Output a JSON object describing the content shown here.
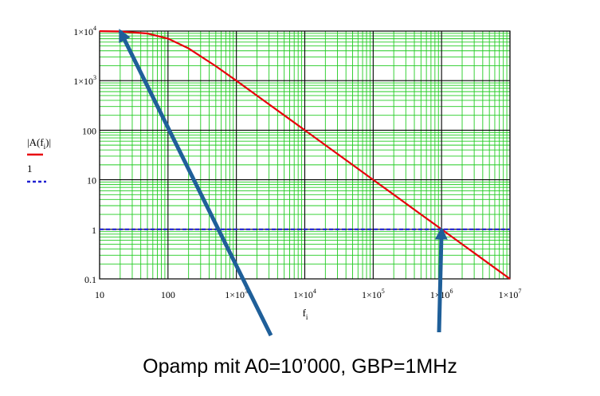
{
  "chart_data": {
    "type": "line",
    "xscale": "log",
    "yscale": "log",
    "xlim": [
      10,
      10000000
    ],
    "ylim": [
      0.1,
      10000
    ],
    "grid": true,
    "xlabel": "f",
    "xlabel_sub": "i",
    "x_ticks": [
      {
        "value": 10,
        "base": "10",
        "exp": ""
      },
      {
        "value": 100,
        "base": "100",
        "exp": ""
      },
      {
        "value": 1000,
        "base": "1×10",
        "exp": "3"
      },
      {
        "value": 10000,
        "base": "1×10",
        "exp": "4"
      },
      {
        "value": 100000,
        "base": "1×10",
        "exp": "5"
      },
      {
        "value": 1000000,
        "base": "1×10",
        "exp": "6"
      },
      {
        "value": 10000000,
        "base": "1×10",
        "exp": "7"
      }
    ],
    "y_ticks": [
      {
        "value": 10000,
        "base": "1×10",
        "exp": "4"
      },
      {
        "value": 1000,
        "base": "1×10",
        "exp": "3"
      },
      {
        "value": 100,
        "base": "100",
        "exp": ""
      },
      {
        "value": 10,
        "base": "10",
        "exp": ""
      },
      {
        "value": 1,
        "base": "1",
        "exp": ""
      },
      {
        "value": 0.1,
        "base": "0.1",
        "exp": ""
      }
    ],
    "series": [
      {
        "name": "|A(f_i)|",
        "legend_main": "|A(f",
        "legend_sub": "i",
        "legend_tail": ")|",
        "color": "#e8000b",
        "style": "solid",
        "x": [
          10,
          20,
          50,
          100,
          200,
          500,
          1000,
          2000,
          5000,
          10000,
          20000,
          50000,
          100000,
          200000,
          500000,
          1000000,
          2000000,
          5000000,
          10000000
        ],
        "y": [
          9950,
          9810,
          8940,
          7070,
          4470,
          1960,
          995,
          499,
          200,
          100,
          50,
          20,
          10,
          5,
          2,
          1,
          0.5,
          0.2,
          0.1
        ]
      },
      {
        "name": "1",
        "color": "#1f1fd1",
        "style": "dashed",
        "x": [
          10,
          10000000
        ],
        "y": [
          1,
          1
        ]
      }
    ],
    "annotations": [
      {
        "text": "",
        "from": [
          340,
          421
        ],
        "to_data": [
          20,
          10000
        ],
        "color": "#1f5f99"
      },
      {
        "text": "",
        "from": [
          551,
          417
        ],
        "to_data": [
          1000000,
          1
        ],
        "color": "#1f5f99"
      }
    ]
  },
  "caption": "Opamp mit A0=10’000, GBP=1MHz"
}
